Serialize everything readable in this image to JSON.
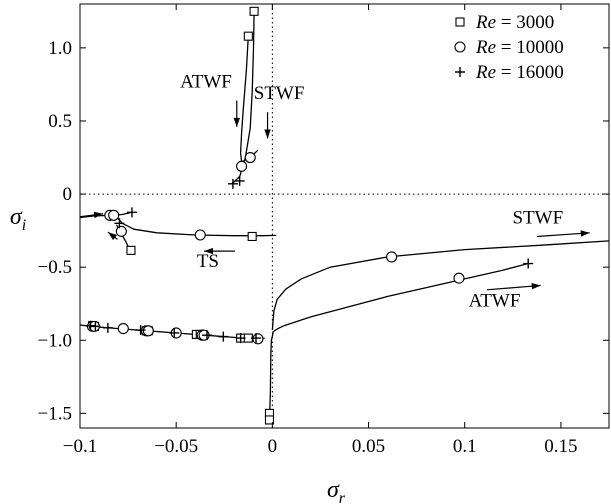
{
  "chart_data": {
    "type": "scatter",
    "xlabel": "σ_r",
    "ylabel": "σ_i",
    "xlim": [
      -0.1,
      0.175
    ],
    "ylim": [
      -1.6,
      1.3
    ],
    "xticks": [
      -0.1,
      -0.05,
      0,
      0.05,
      0.1,
      0.15
    ],
    "xtick_labels": [
      "−0.1",
      "−0.05",
      "0",
      "0.05",
      "0.1",
      "0.15"
    ],
    "yticks": [
      -1.5,
      -1.0,
      -0.5,
      0,
      0.5,
      1.0
    ],
    "ytick_labels": [
      "−1.5",
      "−1.0",
      "−0.5",
      "0",
      "0.5",
      "1.0"
    ],
    "grid": false,
    "reference_lines": {
      "x": 0,
      "y": 0,
      "style": "dotted"
    },
    "legend": {
      "position": "top-right",
      "entries": [
        {
          "marker": "square",
          "text": "Re = 3000"
        },
        {
          "marker": "circle",
          "text": "Re = 10000"
        },
        {
          "marker": "plus",
          "text": "Re = 16000"
        }
      ]
    },
    "curves": [
      {
        "points": [
          [
            -0.0095,
            1.25
          ],
          [
            -0.0098,
            1.0
          ],
          [
            -0.0105,
            0.7
          ],
          [
            -0.0115,
            0.45
          ],
          [
            -0.014,
            0.25
          ],
          [
            -0.017,
            0.12
          ],
          [
            -0.021,
            0.07
          ]
        ]
      },
      {
        "points": [
          [
            -0.0125,
            1.08
          ],
          [
            -0.0135,
            0.85
          ],
          [
            -0.015,
            0.6
          ],
          [
            -0.016,
            0.42
          ],
          [
            -0.0165,
            0.28
          ],
          [
            -0.016,
            0.22
          ],
          [
            -0.0115,
            0.25
          ],
          [
            -0.0075,
            0.3
          ]
        ]
      },
      {
        "points": [
          [
            -0.1,
            -0.16
          ],
          [
            -0.093,
            -0.15
          ],
          [
            -0.085,
            -0.145
          ],
          [
            -0.078,
            -0.14
          ],
          [
            -0.073,
            -0.125
          ]
        ]
      },
      {
        "points": [
          [
            -0.082,
            -0.14
          ],
          [
            -0.078,
            -0.2
          ],
          [
            -0.072,
            -0.24
          ],
          [
            -0.06,
            -0.265
          ],
          [
            -0.04,
            -0.28
          ],
          [
            -0.02,
            -0.285
          ],
          [
            -0.005,
            -0.285
          ],
          [
            0.002,
            -0.283
          ]
        ]
      },
      {
        "points": [
          [
            -0.081,
            -0.21
          ],
          [
            -0.079,
            -0.26
          ],
          [
            -0.076,
            -0.33
          ],
          [
            -0.074,
            -0.39
          ]
        ]
      },
      {
        "points": [
          [
            -0.1,
            -0.895
          ],
          [
            -0.095,
            -0.905
          ],
          [
            -0.08,
            -0.92
          ],
          [
            -0.065,
            -0.935
          ],
          [
            -0.05,
            -0.95
          ],
          [
            -0.035,
            -0.965
          ],
          [
            -0.02,
            -0.98
          ],
          [
            -0.008,
            -0.99
          ],
          [
            -0.004,
            -0.985
          ]
        ]
      },
      {
        "points": [
          [
            -0.0015,
            -1.55
          ],
          [
            -0.001,
            -1.35
          ],
          [
            -0.0008,
            -1.1
          ],
          [
            -0.0005,
            -1.0
          ],
          [
            0.0,
            -0.97
          ],
          [
            0.0005,
            -0.94
          ],
          [
            0.003,
            -0.92
          ],
          [
            0.006,
            -0.9
          ]
        ]
      },
      {
        "points": [
          [
            0.0,
            -0.93
          ],
          [
            0.0003,
            -0.88
          ],
          [
            0.0008,
            -0.8
          ],
          [
            0.0025,
            -0.72
          ],
          [
            0.007,
            -0.65
          ],
          [
            0.015,
            -0.58
          ],
          [
            0.03,
            -0.5
          ],
          [
            0.06,
            -0.43
          ],
          [
            0.1,
            -0.38
          ],
          [
            0.14,
            -0.35
          ],
          [
            0.175,
            -0.32
          ]
        ]
      },
      {
        "points": [
          [
            0.006,
            -0.9
          ],
          [
            0.02,
            -0.84
          ],
          [
            0.04,
            -0.77
          ],
          [
            0.06,
            -0.7
          ],
          [
            0.08,
            -0.64
          ],
          [
            0.1,
            -0.58
          ],
          [
            0.12,
            -0.52
          ],
          [
            0.133,
            -0.475
          ]
        ]
      }
    ],
    "series": [
      {
        "name": "Re = 3000",
        "marker": "square",
        "points": [
          [
            -0.0095,
            1.25
          ],
          [
            -0.0125,
            1.08
          ],
          [
            -0.0105,
            -0.29
          ],
          [
            -0.0735,
            -0.385
          ],
          [
            -0.0935,
            -0.9
          ],
          [
            -0.0925,
            -0.905
          ],
          [
            -0.0655,
            -0.935
          ],
          [
            -0.0645,
            -0.935
          ],
          [
            -0.0395,
            -0.96
          ],
          [
            -0.0375,
            -0.96
          ],
          [
            -0.0165,
            -0.985
          ],
          [
            -0.0125,
            -0.985
          ],
          [
            -0.0015,
            -1.5
          ],
          [
            -0.0015,
            -1.545
          ]
        ]
      },
      {
        "name": "Re = 10000",
        "marker": "circle",
        "points": [
          [
            -0.0115,
            0.25
          ],
          [
            -0.016,
            0.19
          ],
          [
            -0.0845,
            -0.145
          ],
          [
            -0.0825,
            -0.145
          ],
          [
            -0.0785,
            -0.255
          ],
          [
            -0.0375,
            -0.28
          ],
          [
            0.062,
            -0.43
          ],
          [
            0.097,
            -0.575
          ],
          [
            -0.0935,
            -0.905
          ],
          [
            -0.0925,
            -0.905
          ],
          [
            -0.0775,
            -0.92
          ],
          [
            -0.0655,
            -0.935
          ],
          [
            -0.0645,
            -0.935
          ],
          [
            -0.05,
            -0.95
          ],
          [
            -0.0365,
            -0.965
          ],
          [
            -0.0355,
            -0.965
          ],
          [
            -0.0075,
            -0.99
          ]
        ]
      },
      {
        "name": "Re = 16000",
        "marker": "plus",
        "points": [
          [
            -0.0205,
            0.07
          ],
          [
            -0.017,
            0.09
          ],
          [
            -0.073,
            -0.125
          ],
          [
            -0.0795,
            -0.2
          ],
          [
            0.133,
            -0.475
          ],
          [
            -0.0945,
            -0.9
          ],
          [
            -0.092,
            -0.905
          ],
          [
            -0.0855,
            -0.915
          ],
          [
            -0.0685,
            -0.93
          ],
          [
            -0.051,
            -0.95
          ],
          [
            -0.034,
            -0.965
          ],
          [
            -0.0255,
            -0.975
          ],
          [
            -0.0165,
            -0.985
          ],
          [
            -0.0085,
            -0.985
          ]
        ]
      }
    ],
    "annotations": [
      {
        "text": "ATWF",
        "x": -0.0345,
        "y": 0.73
      },
      {
        "text": "STWF",
        "x": 0.0035,
        "y": 0.65
      },
      {
        "text": "TS",
        "x": -0.0335,
        "y": -0.5
      },
      {
        "text": "STWF",
        "x": 0.138,
        "y": -0.2
      },
      {
        "text": "ATWF",
        "x": 0.1155,
        "y": -0.77
      }
    ],
    "arrows": [
      {
        "from": [
          -0.0185,
          0.64
        ],
        "to": [
          -0.0185,
          0.46
        ]
      },
      {
        "from": [
          -0.0025,
          0.56
        ],
        "to": [
          -0.0025,
          0.38
        ]
      },
      {
        "from": [
          -0.1,
          -0.155
        ],
        "to": [
          -0.088,
          -0.135
        ]
      },
      {
        "from": [
          -0.0805,
          -0.31
        ],
        "to": [
          -0.0855,
          -0.26
        ]
      },
      {
        "from": [
          -0.0195,
          -0.39
        ],
        "to": [
          -0.0355,
          -0.39
        ]
      },
      {
        "from": [
          0.1375,
          -0.29
        ],
        "to": [
          0.165,
          -0.265
        ]
      },
      {
        "from": [
          0.1115,
          -0.655
        ],
        "to": [
          0.1395,
          -0.625
        ]
      }
    ]
  }
}
